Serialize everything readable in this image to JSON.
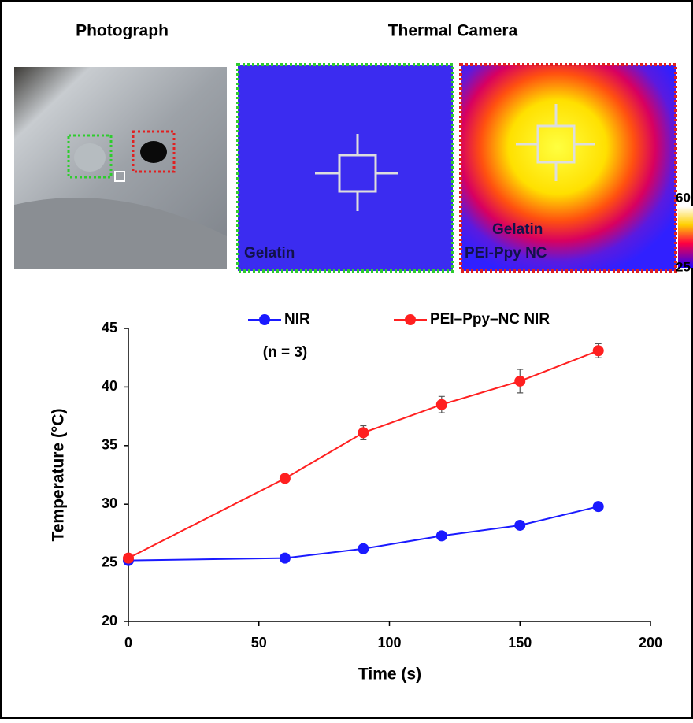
{
  "figure": {
    "photo_title": "Photograph",
    "thermal_title": "Thermal Camera",
    "thermal_left_label": "Gelatin",
    "thermal_right_labels": [
      "Gelatin",
      "PEI-Ppy NC"
    ],
    "colorbar": {
      "max": 60,
      "min": 25
    }
  },
  "chart_data": {
    "type": "line",
    "x_label": "Time (s)",
    "y_label": "Temperature (°C)",
    "annotation": "(n = 3)",
    "x": [
      0,
      60,
      90,
      120,
      150,
      180
    ],
    "series": [
      {
        "name": "NIR",
        "color": "#1a1aff",
        "values": [
          25.2,
          25.4,
          26.2,
          27.3,
          28.2,
          29.8
        ],
        "errors": [
          0.1,
          0.1,
          0.2,
          0.2,
          0.2,
          0.3
        ]
      },
      {
        "name": "PEI–Ppy–NC NIR",
        "color": "#ff2020",
        "values": [
          25.4,
          32.2,
          36.1,
          38.5,
          40.5,
          43.1
        ],
        "errors": [
          0.2,
          0.3,
          0.6,
          0.7,
          1.0,
          0.6
        ]
      }
    ],
    "xlim": [
      0,
      200
    ],
    "xticks": [
      0,
      50,
      100,
      150,
      200
    ],
    "ylim": [
      20,
      45
    ],
    "yticks": [
      20,
      25,
      30,
      35,
      40,
      45
    ]
  }
}
